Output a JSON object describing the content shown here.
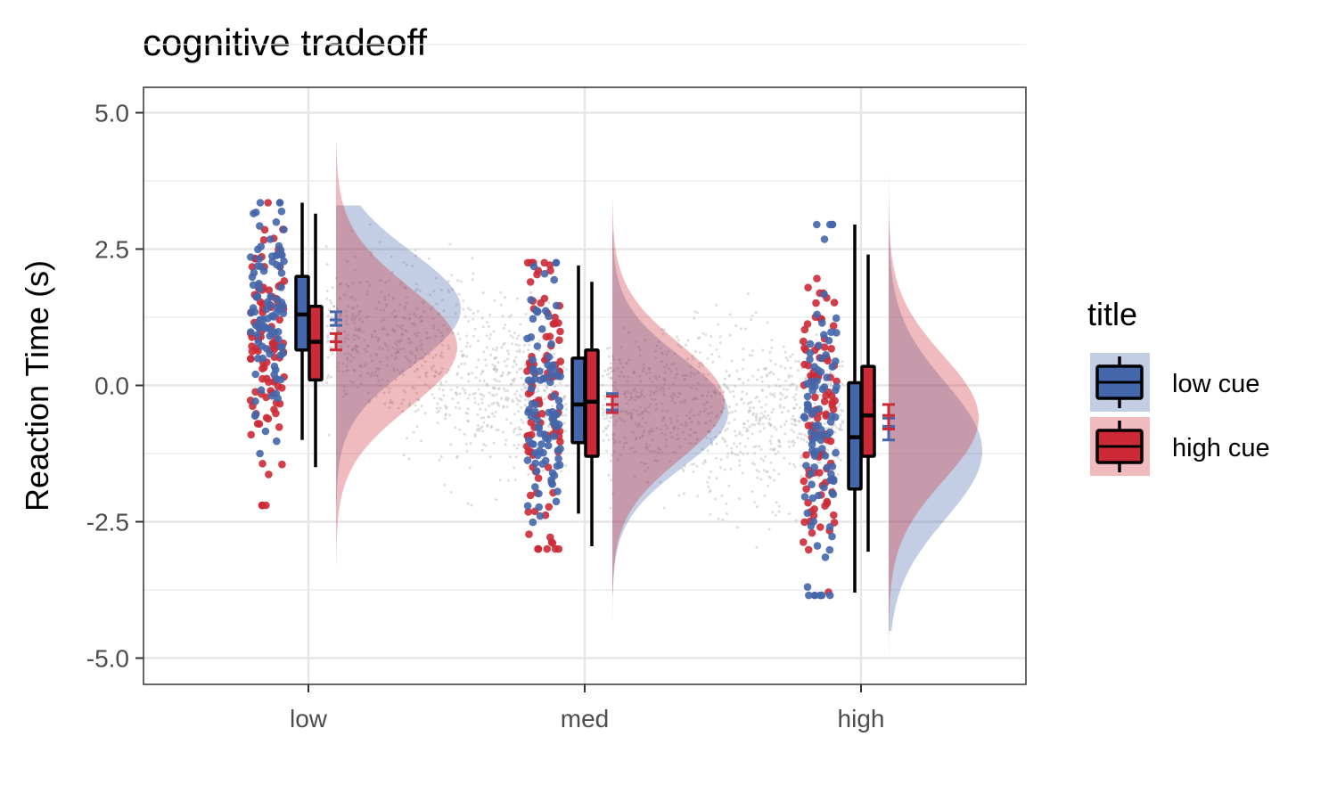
{
  "chart_data": {
    "type": "raincloud",
    "title": "cognitive tradeoff",
    "xlabel": "",
    "ylabel": "Reaction Time (s)",
    "categories": [
      "low",
      "med",
      "high"
    ],
    "ylim": [
      -5.5,
      5.5
    ],
    "yticks": [
      5.0,
      2.5,
      0.0,
      -2.5,
      -5.0
    ],
    "ytick_labels": [
      "5.0",
      "2.5",
      "0.0",
      "-2.5",
      "-5.0"
    ],
    "grid": true,
    "legend": {
      "title": "title",
      "position": "right",
      "entries": [
        {
          "label": "low cue",
          "color": "#4466aa"
        },
        {
          "label": "high cue",
          "color": "#cc2a36"
        }
      ]
    },
    "series": [
      {
        "name": "low cue",
        "color": "#4466aa",
        "boxplots": [
          {
            "min": -1.0,
            "q1": 0.65,
            "median": 1.3,
            "q3": 2.0,
            "max": 3.35
          },
          {
            "min": -2.35,
            "q1": -1.05,
            "median": -0.35,
            "q3": 0.5,
            "max": 2.2
          },
          {
            "min": -3.8,
            "q1": -1.9,
            "median": -0.95,
            "q3": 0.05,
            "max": 2.95
          }
        ],
        "mean_se": [
          {
            "mean": 1.2,
            "lo": 1.1,
            "hi": 1.35
          },
          {
            "mean": -0.35,
            "lo": -0.45,
            "hi": -0.15
          },
          {
            "mean": -0.75,
            "lo": -1.0,
            "hi": -0.6
          }
        ],
        "density_peak": [
          1.4,
          -0.5,
          -1.2
        ],
        "density_spread": [
          1.05,
          1.0,
          1.25
        ]
      },
      {
        "name": "high cue",
        "color": "#cc2a36",
        "boxplots": [
          {
            "min": -1.5,
            "q1": 0.1,
            "median": 0.8,
            "q3": 1.45,
            "max": 3.15
          },
          {
            "min": -2.95,
            "q1": -1.3,
            "median": -0.3,
            "q3": 0.65,
            "max": 1.9
          },
          {
            "min": -3.05,
            "q1": -1.3,
            "median": -0.55,
            "q3": 0.35,
            "max": 2.4
          }
        ],
        "mean_se": [
          {
            "mean": 0.8,
            "lo": 0.65,
            "hi": 0.95
          },
          {
            "mean": -0.35,
            "lo": -0.5,
            "hi": -0.2
          },
          {
            "mean": -0.55,
            "lo": -0.8,
            "hi": -0.35
          }
        ],
        "density_peak": [
          0.7,
          -0.3,
          -0.6
        ],
        "density_spread": [
          1.1,
          1.05,
          1.15
        ]
      }
    ],
    "raw_point_range": {
      "low": {
        "min": -2.2,
        "max": 3.35
      },
      "med": {
        "min": -3.0,
        "max": 2.25
      },
      "high": {
        "min": -3.85,
        "max": 2.95
      }
    }
  }
}
